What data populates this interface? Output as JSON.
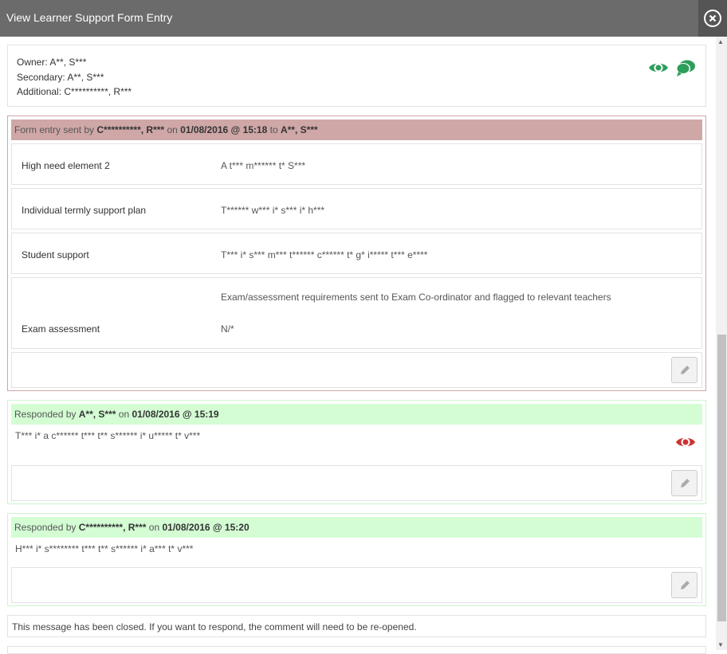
{
  "window": {
    "title": "View Learner Support Form Entry"
  },
  "info": {
    "owner_label": "Owner:",
    "owner": "A**, S***",
    "secondary_label": "Secondary:",
    "secondary": "A**, S***",
    "additional_label": "Additional:",
    "additional": "C**********, R***",
    "icon_color": "#2e9e5b"
  },
  "form_entry": {
    "prefix": "Form entry sent by",
    "sender": "C**********, R***",
    "on": "on",
    "datetime": "01/08/2016 @ 15:18",
    "to": "to",
    "recipient": "A**, S***",
    "rows": [
      {
        "label": "High need element 2",
        "value": "A t*** m****** t* S***"
      },
      {
        "label": "Individual termly support plan",
        "value": "T****** w*** i* s*** i* h***"
      },
      {
        "label": "Student support",
        "value": "T*** i* s*** m*** t****** c****** t* g* i***** t*** e****"
      },
      {
        "label": "Exam assessment",
        "value": "Exam/assessment requirements sent to Exam Co-ordinator and flagged to relevant teachers",
        "value2": "N/*"
      }
    ]
  },
  "responses": [
    {
      "prefix": "Responded by",
      "author": "A**, S***",
      "on": "on",
      "datetime": "01/08/2016 @ 15:19",
      "text": "T*** i* a c****** t*** t** s****** i* u***** t* v***",
      "eye_color": "#cc3333"
    },
    {
      "prefix": "Responded by",
      "author": "C**********, R***",
      "on": "on",
      "datetime": "01/08/2016 @ 15:20",
      "text": "H*** i* s******** t*** t** s****** i* a*** t* v***"
    }
  ],
  "closed_notice": "This message has been closed. If you want to respond, the comment will need to be re-opened."
}
